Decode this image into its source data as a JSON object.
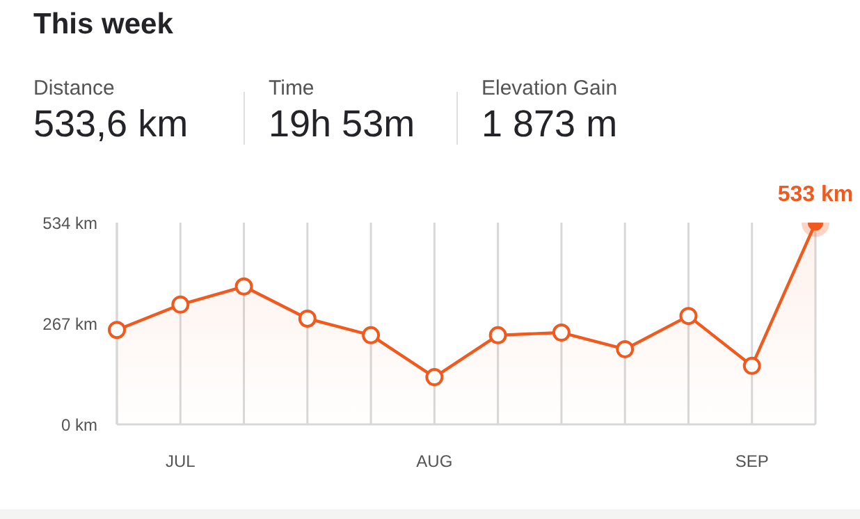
{
  "chart_data": {
    "type": "area",
    "title": "This week",
    "annotations": [
      "Distance",
      "533,6 km",
      "Time",
      "19h 53m",
      "Elevation Gain",
      "1 873 m"
    ],
    "categories": [
      null,
      "JUL",
      null,
      null,
      null,
      "AUG",
      null,
      null,
      null,
      null,
      "SEP",
      null
    ],
    "series": [
      {
        "color": "#f05a1e",
        "values": [
          250,
          317,
          365,
          280,
          236,
          125,
          236,
          243,
          199,
          287,
          155,
          533
        ],
        "value_labels": [
          null,
          null,
          null,
          null,
          null,
          null,
          null,
          null,
          null,
          null,
          null,
          "533 km"
        ]
      }
    ],
    "ylim": [
      0,
      534
    ],
    "yticks": [
      {
        "value": 0,
        "label": "0 km"
      },
      {
        "value": 267,
        "label": "267 km"
      },
      {
        "value": 534,
        "label": "534 km"
      }
    ],
    "grid": "x",
    "marker": "circle"
  }
}
